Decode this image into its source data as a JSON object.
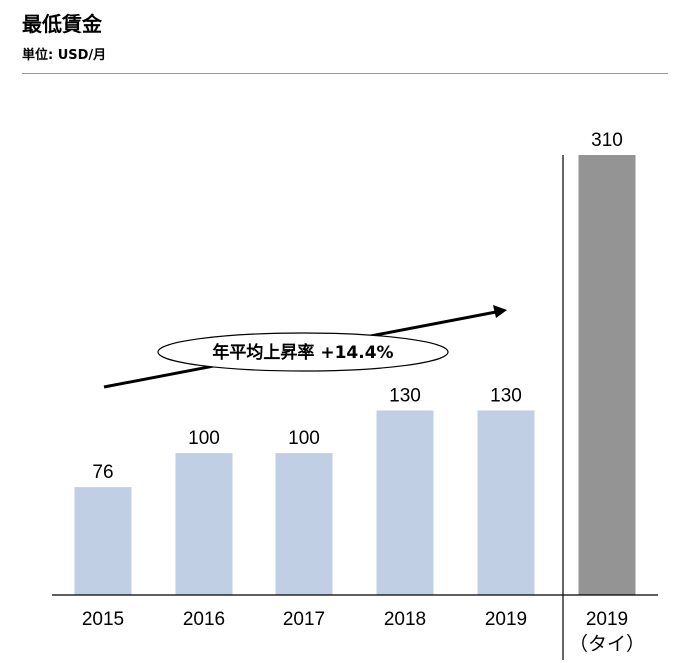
{
  "header": {
    "title": "最低賃金",
    "unit": "単位: USD/月"
  },
  "chart_data": {
    "type": "bar",
    "categories": [
      "2015",
      "2016",
      "2017",
      "2018",
      "2019",
      "2019"
    ],
    "category_sublabels": [
      "",
      "",
      "",
      "",
      "",
      "（タイ）"
    ],
    "values": [
      76,
      100,
      100,
      130,
      130,
      310
    ],
    "bar_colors": [
      "#c0cfe3",
      "#c0cfe3",
      "#c0cfe3",
      "#c0cfe3",
      "#c0cfe3",
      "#949494"
    ],
    "ylim": [
      0,
      310
    ],
    "grid": false,
    "annotation": "年平均上昇率 +14.4%"
  }
}
